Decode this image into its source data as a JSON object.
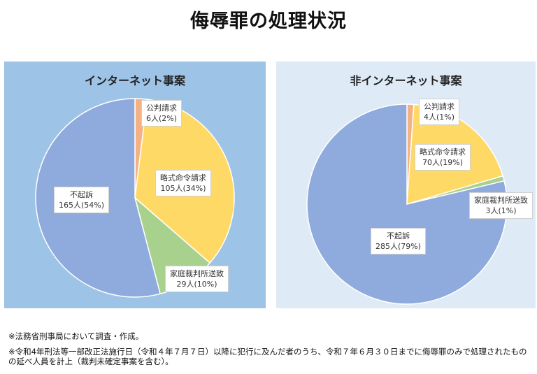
{
  "title": "侮辱罪の処理状況",
  "chart_data": [
    {
      "type": "pie",
      "title": "インターネット事案",
      "start_angle_deg": 0,
      "direction": "clockwise",
      "slices": [
        {
          "name": "公判請求",
          "value": 6,
          "pct_label": "6人(2%)",
          "color": "#f4b183"
        },
        {
          "name": "略式命令請求",
          "value": 105,
          "pct_label": "105人(34%)",
          "color": "#ffd966"
        },
        {
          "name": "家庭裁判所送致",
          "value": 29,
          "pct_label": "29人(10%)",
          "color": "#a9d18e"
        },
        {
          "name": "不起訴",
          "value": 165,
          "pct_label": "165人(54%)",
          "color": "#8faadc"
        }
      ],
      "background": "#9dc3e6"
    },
    {
      "type": "pie",
      "title": "非インターネット事案",
      "start_angle_deg": 0,
      "direction": "clockwise",
      "slices": [
        {
          "name": "公判請求",
          "value": 4,
          "pct_label": "4人(1%)",
          "color": "#f4b183"
        },
        {
          "name": "略式命令請求",
          "value": 70,
          "pct_label": "70人(19%)",
          "color": "#ffd966"
        },
        {
          "name": "家庭裁判所送致",
          "value": 3,
          "pct_label": "3人(1%)",
          "color": "#a9d18e"
        },
        {
          "name": "不起訴",
          "value": 285,
          "pct_label": "285人(79%)",
          "color": "#8faadc"
        }
      ],
      "background": "#deebf7"
    }
  ],
  "notes": [
    "※法務省刑事局において調査・作成。",
    "※令和4年刑法等一部改正法施行日（令和４年７月７日）以降に犯行に及んだ者のうち、令和７年６月３０日までに侮辱罪のみで処理されたものの延べ人員を計上（裁判未確定事案を含む）。"
  ]
}
